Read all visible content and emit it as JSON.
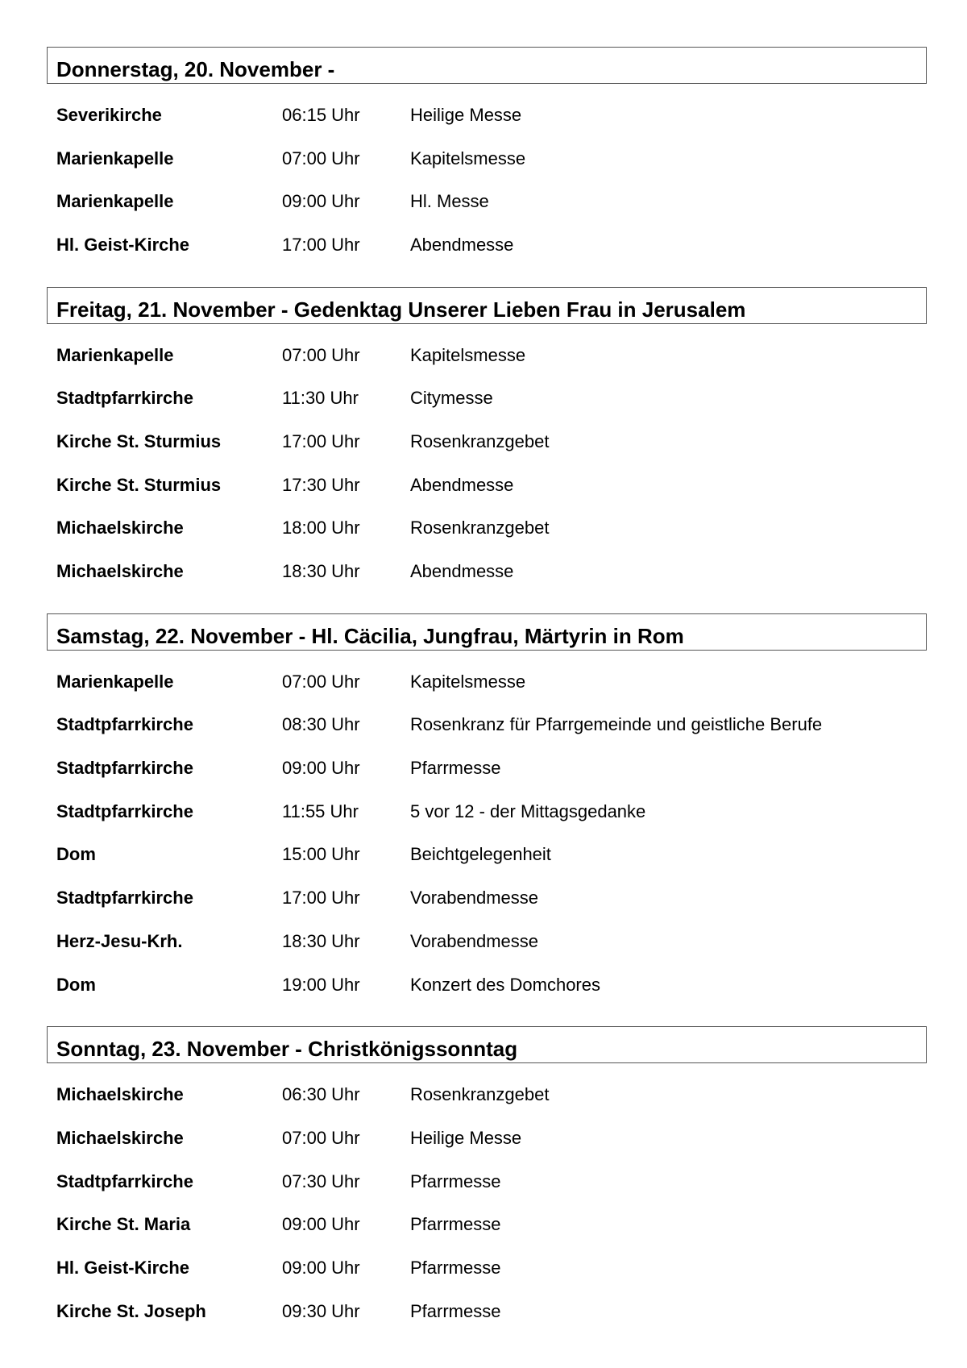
{
  "days": [
    {
      "header": "Donnerstag, 20. November -",
      "events": [
        {
          "location": "Severikirche",
          "time": "06:15 Uhr",
          "description": "Heilige Messe"
        },
        {
          "location": "Marienkapelle",
          "time": "07:00 Uhr",
          "description": "Kapitelsmesse"
        },
        {
          "location": "Marienkapelle",
          "time": "09:00 Uhr",
          "description": "Hl. Messe"
        },
        {
          "location": "Hl. Geist-Kirche",
          "time": "17:00 Uhr",
          "description": "Abendmesse"
        }
      ]
    },
    {
      "header": "Freitag, 21. November - Gedenktag Unserer Lieben Frau in Jerusalem",
      "events": [
        {
          "location": "Marienkapelle",
          "time": "07:00 Uhr",
          "description": "Kapitelsmesse"
        },
        {
          "location": "Stadtpfarrkirche",
          "time": "11:30 Uhr",
          "description": "Citymesse"
        },
        {
          "location": "Kirche St. Sturmius",
          "time": "17:00 Uhr",
          "description": "Rosenkranzgebet"
        },
        {
          "location": "Kirche St. Sturmius",
          "time": "17:30 Uhr",
          "description": "Abendmesse"
        },
        {
          "location": "Michaelskirche",
          "time": "18:00 Uhr",
          "description": "Rosenkranzgebet"
        },
        {
          "location": "Michaelskirche",
          "time": "18:30 Uhr",
          "description": "Abendmesse"
        }
      ]
    },
    {
      "header": "Samstag, 22. November - Hl. Cäcilia, Jungfrau, Märtyrin in Rom",
      "events": [
        {
          "location": "Marienkapelle",
          "time": "07:00 Uhr",
          "description": "Kapitelsmesse"
        },
        {
          "location": "Stadtpfarrkirche",
          "time": "08:30 Uhr",
          "description": "Rosenkranz für Pfarrgemeinde und geistliche Berufe"
        },
        {
          "location": "Stadtpfarrkirche",
          "time": "09:00 Uhr",
          "description": "Pfarrmesse"
        },
        {
          "location": "Stadtpfarrkirche",
          "time": "11:55 Uhr",
          "description": "5 vor 12 - der Mittagsgedanke"
        },
        {
          "location": "Dom",
          "time": "15:00 Uhr",
          "description": "Beichtgelegenheit"
        },
        {
          "location": "Stadtpfarrkirche",
          "time": "17:00 Uhr",
          "description": "Vorabendmesse"
        },
        {
          "location": "Herz-Jesu-Krh.",
          "time": "18:30 Uhr",
          "description": "Vorabendmesse"
        },
        {
          "location": "Dom",
          "time": "19:00 Uhr",
          "description": "Konzert des Domchores"
        }
      ]
    },
    {
      "header": "Sonntag, 23. November - Christkönigssonntag",
      "events": [
        {
          "location": "Michaelskirche",
          "time": "06:30 Uhr",
          "description": "Rosenkranzgebet"
        },
        {
          "location": "Michaelskirche",
          "time": "07:00 Uhr",
          "description": "Heilige Messe"
        },
        {
          "location": "Stadtpfarrkirche",
          "time": "07:30 Uhr",
          "description": "Pfarrmesse"
        },
        {
          "location": "Kirche St. Maria",
          "time": "09:00 Uhr",
          "description": "Pfarrmesse"
        },
        {
          "location": "Hl. Geist-Kirche",
          "time": "09:00 Uhr",
          "description": "Pfarrmesse"
        },
        {
          "location": "Kirche St. Joseph",
          "time": "09:30 Uhr",
          "description": "Pfarrmesse"
        }
      ]
    }
  ]
}
